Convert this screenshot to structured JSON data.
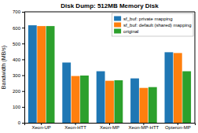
{
  "chart_data": {
    "type": "bar",
    "title": "Disk Dump: 512MB Memory Disk",
    "ylabel": "Bandwidth (MB/s)",
    "categories": [
      "Xeon-UP",
      "Xeon-HTT",
      "Xeon-MP",
      "Xeon-MP-HTT",
      "Opteron-MP"
    ],
    "series": [
      {
        "name": "sf_buf: private mapping",
        "values": [
          615,
          380,
          325,
          280,
          445
        ]
      },
      {
        "name": "sf_buf: default (shared) mapping",
        "values": [
          610,
          295,
          265,
          220,
          440
        ]
      },
      {
        "name": "original",
        "values": [
          610,
          298,
          268,
          225,
          325
        ]
      }
    ],
    "ylim": [
      0,
      700
    ],
    "yticks": [
      0,
      100,
      200,
      300,
      400,
      500,
      600,
      700
    ],
    "grid": false,
    "legend": "upper right"
  }
}
